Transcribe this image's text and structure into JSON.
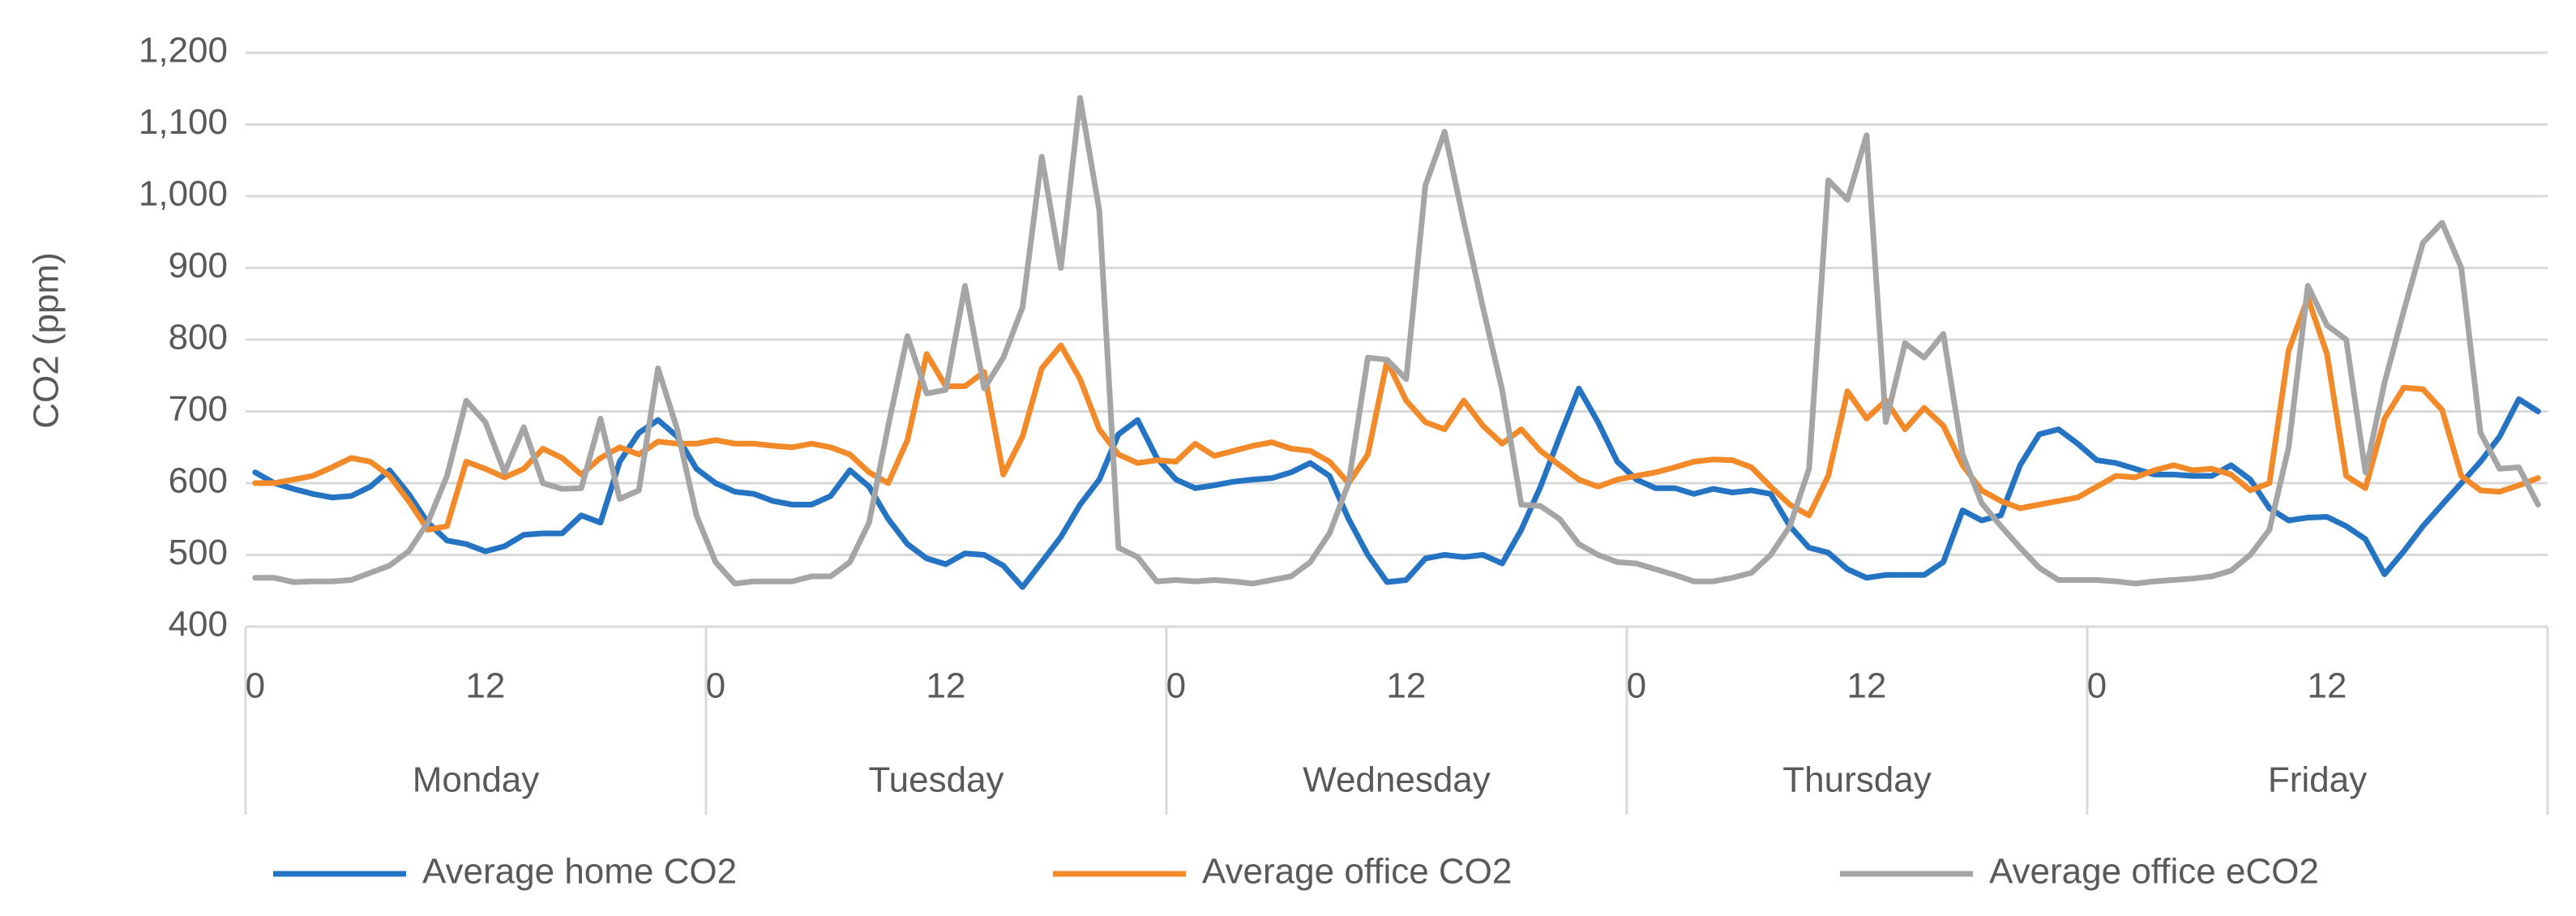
{
  "chart_data": {
    "type": "line",
    "ylabel": "CO2 (ppm)",
    "categories": [
      "0",
      null,
      null,
      null,
      null,
      null,
      null,
      null,
      null,
      null,
      null,
      null,
      "12",
      null,
      null,
      null,
      null,
      null,
      null,
      null,
      null,
      null,
      null,
      null,
      "0",
      null,
      null,
      null,
      null,
      null,
      null,
      null,
      null,
      null,
      null,
      null,
      "12",
      null,
      null,
      null,
      null,
      null,
      null,
      null,
      null,
      null,
      null,
      null,
      "0",
      null,
      null,
      null,
      null,
      null,
      null,
      null,
      null,
      null,
      null,
      null,
      "12",
      null,
      null,
      null,
      null,
      null,
      null,
      null,
      null,
      null,
      null,
      null,
      "0",
      null,
      null,
      null,
      null,
      null,
      null,
      null,
      null,
      null,
      null,
      null,
      "12",
      null,
      null,
      null,
      null,
      null,
      null,
      null,
      null,
      null,
      null,
      null,
      "0",
      null,
      null,
      null,
      null,
      null,
      null,
      null,
      null,
      null,
      null,
      null,
      "12",
      null,
      null,
      null,
      null,
      null,
      null,
      null,
      null,
      null,
      null,
      null
    ],
    "category_groups": [
      "Monday",
      "Tuesday",
      "Wednesday",
      "Thursday",
      "Friday"
    ],
    "series": [
      {
        "name": "Average home CO2",
        "color": "#2574c4",
        "values": [
          615,
          600,
          592,
          585,
          580,
          582,
          595,
          618,
          585,
          545,
          520,
          515,
          505,
          512,
          528,
          530,
          530,
          555,
          545,
          630,
          670,
          688,
          665,
          620,
          600,
          588,
          585,
          575,
          570,
          570,
          582,
          618,
          595,
          550,
          515,
          495,
          487,
          502,
          500,
          485,
          455,
          490,
          525,
          570,
          605,
          668,
          688,
          635,
          605,
          593,
          597,
          602,
          605,
          607,
          615,
          628,
          610,
          550,
          500,
          462,
          465,
          495,
          500,
          497,
          500,
          488,
          535,
          595,
          665,
          732,
          685,
          630,
          605,
          593,
          593,
          585,
          592,
          587,
          590,
          585,
          540,
          510,
          503,
          480,
          468,
          472,
          472,
          472,
          490,
          562,
          548,
          555,
          625,
          668,
          675,
          655,
          632,
          628,
          620,
          612,
          612,
          610,
          610,
          625,
          605,
          565,
          548,
          552,
          553,
          540,
          522,
          473,
          505,
          540,
          570,
          600,
          630,
          665,
          717,
          700
        ]
      },
      {
        "name": "Average office CO2",
        "color": "#f38a2a",
        "values": [
          600,
          600,
          605,
          610,
          622,
          635,
          630,
          610,
          575,
          535,
          540,
          630,
          620,
          608,
          620,
          648,
          635,
          612,
          635,
          650,
          640,
          658,
          655,
          655,
          660,
          655,
          655,
          652,
          650,
          655,
          650,
          640,
          615,
          600,
          660,
          780,
          735,
          735,
          755,
          612,
          665,
          760,
          792,
          745,
          675,
          640,
          628,
          632,
          630,
          655,
          638,
          645,
          652,
          657,
          648,
          645,
          630,
          600,
          640,
          770,
          715,
          685,
          675,
          715,
          680,
          655,
          675,
          645,
          625,
          605,
          595,
          605,
          610,
          615,
          622,
          630,
          633,
          632,
          622,
          595,
          570,
          555,
          610,
          728,
          690,
          715,
          675,
          705,
          680,
          625,
          590,
          575,
          565,
          570,
          575,
          580,
          595,
          610,
          608,
          618,
          625,
          618,
          620,
          612,
          590,
          600,
          785,
          858,
          780,
          610,
          593,
          690,
          733,
          731,
          702,
          610,
          590,
          588,
          597,
          607
        ]
      },
      {
        "name": "Average office eCO2",
        "color": "#a5a5a5",
        "values": [
          468,
          468,
          462,
          463,
          463,
          465,
          475,
          485,
          505,
          545,
          610,
          715,
          685,
          615,
          678,
          600,
          592,
          593,
          690,
          578,
          590,
          760,
          675,
          555,
          490,
          460,
          463,
          463,
          463,
          470,
          470,
          490,
          545,
          680,
          805,
          725,
          730,
          875,
          732,
          775,
          845,
          1055,
          900,
          1137,
          980,
          510,
          497,
          463,
          465,
          463,
          465,
          463,
          460,
          465,
          470,
          490,
          530,
          600,
          775,
          772,
          745,
          1015,
          1090,
          965,
          845,
          730,
          570,
          568,
          550,
          515,
          500,
          490,
          488,
          480,
          472,
          463,
          463,
          468,
          475,
          500,
          540,
          620,
          1022,
          995,
          1085,
          685,
          795,
          775,
          808,
          640,
          572,
          540,
          510,
          482,
          465,
          465,
          465,
          463,
          460,
          463,
          465,
          467,
          470,
          478,
          500,
          535,
          650,
          875,
          820,
          800,
          615,
          740,
          840,
          935,
          963,
          900,
          670,
          620,
          622,
          570
        ]
      }
    ],
    "ylim": [
      400,
      1200
    ],
    "yticks": [
      400,
      500,
      600,
      700,
      800,
      900,
      {
        "value": 1000,
        "label": "1,000"
      },
      {
        "value": 1100,
        "label": "1,100"
      },
      {
        "value": 1200,
        "label": "1,200"
      }
    ],
    "grid": true,
    "legend": "bottom"
  }
}
